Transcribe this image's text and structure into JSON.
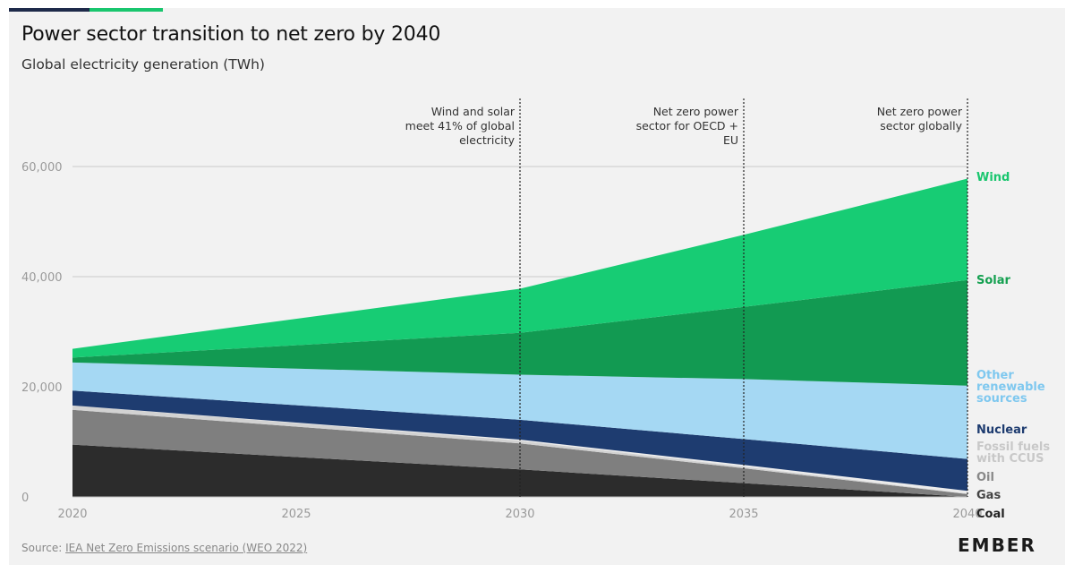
{
  "header": {
    "title": "Power sector transition to net zero by 2040",
    "subtitle": "Global electricity generation (TWh)"
  },
  "footer": {
    "source_prefix": "Source: ",
    "source_link": "IEA Net Zero Emissions scenario (WEO 2022)",
    "logo": "EMBER"
  },
  "chart_data": {
    "type": "area",
    "stacked": true,
    "x": [
      2020,
      2030,
      2035,
      2040
    ],
    "xticks": [
      "2020",
      "2025",
      "2030",
      "2035",
      "2040"
    ],
    "xtick_values": [
      2020,
      2025,
      2030,
      2035,
      2040
    ],
    "yticks": [
      "0",
      "20,000",
      "40,000",
      "60,000"
    ],
    "ytick_values": [
      0,
      20000,
      40000,
      60000
    ],
    "ylim": [
      0,
      70000
    ],
    "xlim": [
      2020,
      2040
    ],
    "grid": "horizontal",
    "series": [
      {
        "name": "Coal",
        "key": "coal",
        "color": "#2c2c2c",
        "label_color": "#222222",
        "values": [
          9500,
          5000,
          2500,
          0
        ]
      },
      {
        "name": "Gas",
        "key": "gas",
        "color": "#7f7f7f",
        "label_color": "#444444",
        "values": [
          6300,
          4700,
          2700,
          500
        ]
      },
      {
        "name": "Oil",
        "key": "oil",
        "color": "#d2d2d2",
        "label_color": "#888888",
        "values": [
          800,
          500,
          300,
          100
        ]
      },
      {
        "name": "Fossil fuels with CCUS",
        "key": "ccus",
        "color": "#ececec",
        "label_color": "#c8c8c8",
        "values": [
          0,
          200,
          300,
          500
        ]
      },
      {
        "name": "Nuclear",
        "key": "nuclear",
        "color": "#1e3c70",
        "label_color": "#1e3c70",
        "values": [
          2700,
          3600,
          4700,
          5800
        ]
      },
      {
        "name": "Other renewable sources",
        "key": "other",
        "color": "#a5d8f3",
        "label_color": "#7fc8ef",
        "values": [
          5100,
          8200,
          10900,
          13300
        ]
      },
      {
        "name": "Solar",
        "key": "solar",
        "color": "#129a52",
        "label_color": "#14a050",
        "values": [
          900,
          7600,
          13100,
          19200
        ]
      },
      {
        "name": "Wind",
        "key": "wind",
        "color": "#17cc74",
        "label_color": "#19c66e",
        "values": [
          1600,
          8000,
          13100,
          18400
        ]
      }
    ],
    "labels": [
      {
        "key": "wind",
        "lines": [
          "Wind"
        ]
      },
      {
        "key": "solar",
        "lines": [
          "Solar"
        ]
      },
      {
        "key": "other",
        "lines": [
          "Other",
          "renewable",
          "sources"
        ]
      },
      {
        "key": "nuclear",
        "lines": [
          "Nuclear"
        ]
      },
      {
        "key": "ccus",
        "lines": [
          "Fossil fuels",
          "with CCUS"
        ]
      },
      {
        "key": "oil",
        "lines": [
          "Oil"
        ]
      },
      {
        "key": "gas",
        "lines": [
          "Gas"
        ]
      },
      {
        "key": "coal",
        "lines": [
          "Coal"
        ]
      }
    ],
    "annotations": [
      {
        "x": 2030,
        "lines": [
          "Wind and solar",
          "meet 41% of global",
          "electricity"
        ]
      },
      {
        "x": 2035,
        "lines": [
          "Net zero power",
          "sector for OECD +",
          "EU"
        ]
      },
      {
        "x": 2040,
        "lines": [
          "Net zero power",
          "sector globally"
        ]
      }
    ]
  }
}
